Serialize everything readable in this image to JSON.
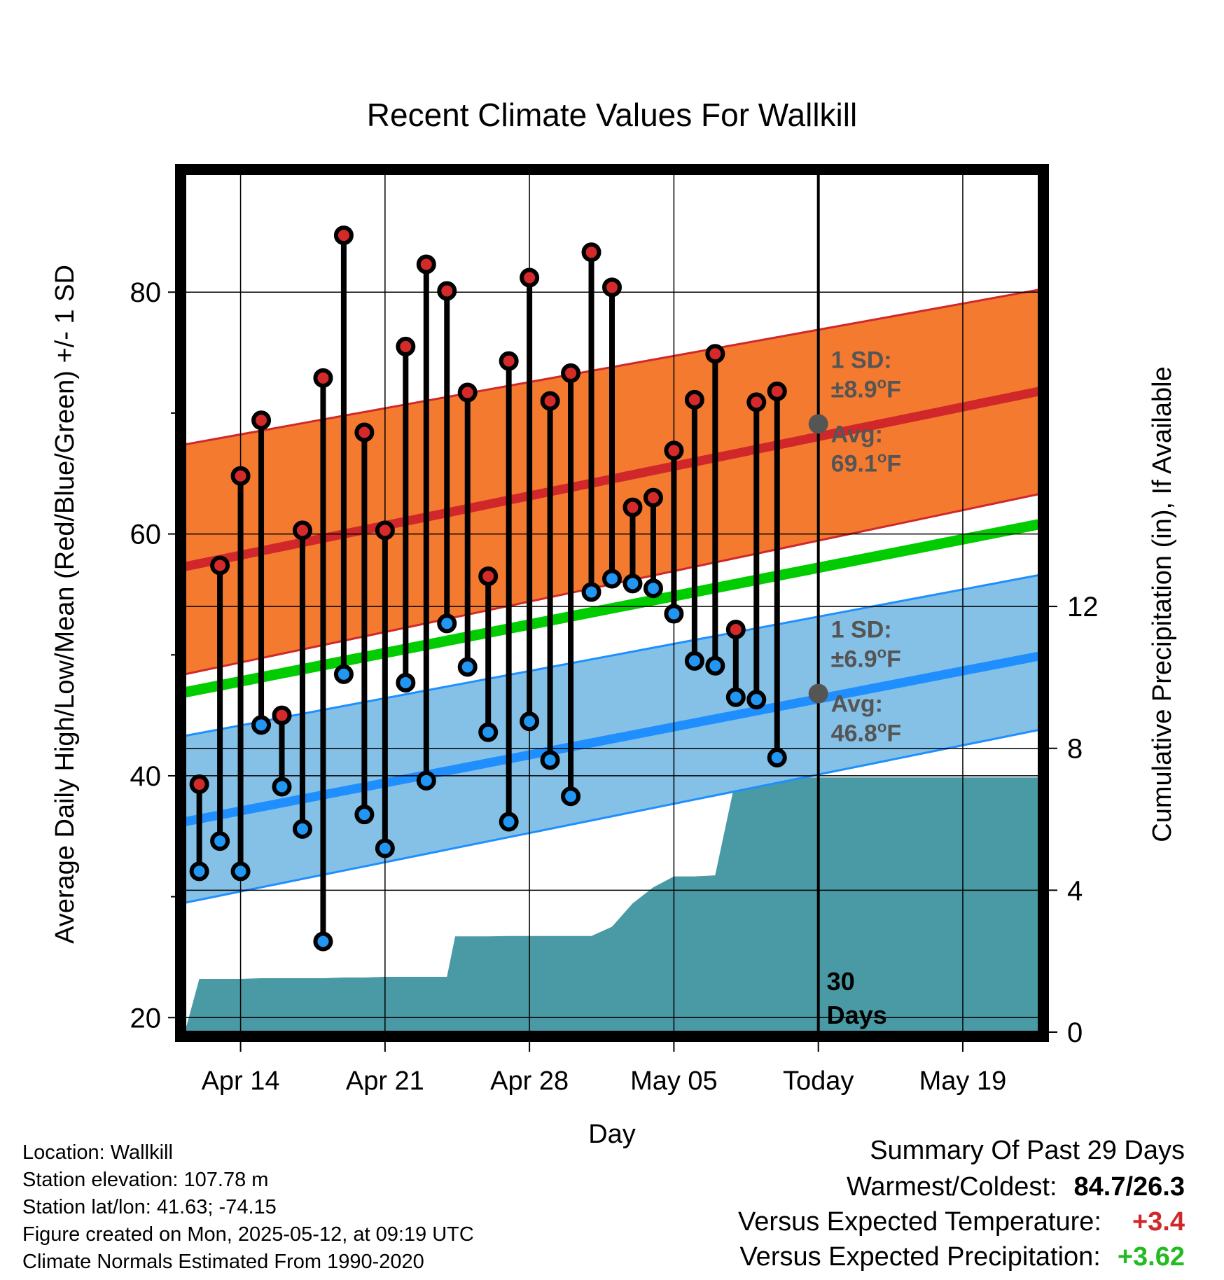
{
  "chart_data": {
    "type": "line",
    "title": "Recent Climate Values For Wallkill",
    "xlabel": "Day",
    "ylabel": "Average Daily High/Low/Mean (Red/Blue/Green) +/- 1 SD",
    "y2label": "Cumulative Precipitation (in), If Available",
    "ylim": [
      18.8,
      89.8
    ],
    "y2lim": [
      0,
      24.2
    ],
    "xlim": [
      -0.7,
      40.7
    ],
    "yticks": [
      20,
      40,
      60,
      80
    ],
    "yticks_minor": [
      30,
      50,
      70
    ],
    "y2ticks": [
      0,
      4,
      8,
      12
    ],
    "x_ticks": [
      {
        "label": "Apr 14",
        "x": 2
      },
      {
        "label": "Apr 21",
        "x": 9
      },
      {
        "label": "Apr 28",
        "x": 16
      },
      {
        "label": "May 05",
        "x": 23
      },
      {
        "label": "Today",
        "x": 30
      },
      {
        "label": "May 19",
        "x": 37
      }
    ],
    "today_x": 30,
    "today_label_line1": "30",
    "today_label_line2": "Days",
    "grid": true,
    "daily": {
      "x": [
        0,
        1,
        2,
        3,
        4,
        5,
        6,
        7,
        8,
        9,
        10,
        11,
        12,
        13,
        14,
        15,
        16,
        17,
        18,
        19,
        20,
        21,
        22,
        23,
        24,
        25,
        26,
        27,
        28,
        29
      ],
      "high": [
        39.3,
        57.4,
        64.8,
        69.4,
        45.0,
        60.3,
        72.9,
        84.7,
        68.4,
        60.3,
        75.5,
        82.3,
        80.1,
        71.7,
        56.5,
        74.3,
        81.2,
        71.0,
        73.3,
        83.3,
        80.4,
        62.2,
        63.0,
        66.9,
        71.1,
        74.9,
        52.1,
        70.9,
        71.8,
        null
      ],
      "low": [
        32.1,
        34.6,
        32.1,
        44.2,
        39.1,
        35.6,
        26.3,
        48.4,
        36.8,
        34.0,
        47.7,
        39.6,
        52.6,
        49.0,
        43.6,
        36.2,
        44.5,
        41.3,
        38.3,
        55.2,
        56.3,
        55.9,
        55.5,
        53.4,
        49.5,
        49.1,
        46.5,
        46.3,
        41.5,
        null
      ]
    },
    "normals": {
      "x_start": -0.7,
      "x_end": 40.7,
      "high_avg": [
        57.3,
        71.8
      ],
      "high_lower": [
        48.4,
        63.3
      ],
      "high_upper": [
        67.4,
        80.2
      ],
      "low_avg": [
        36.2,
        49.9
      ],
      "low_lower": [
        29.5,
        43.8
      ],
      "low_upper": [
        43.3,
        56.6
      ],
      "mean_avg": [
        46.9,
        60.8
      ]
    },
    "precip": {
      "x": [
        -0.7,
        0,
        1,
        2,
        3,
        4,
        5,
        6,
        7,
        8,
        9,
        10,
        11,
        12,
        12.4,
        13,
        14,
        15,
        16,
        17,
        18,
        19,
        20,
        21,
        22,
        23,
        24,
        25,
        26,
        27,
        28,
        29,
        30,
        40.7
      ],
      "y": [
        0,
        1.5,
        1.5,
        1.5,
        1.52,
        1.52,
        1.52,
        1.52,
        1.54,
        1.54,
        1.56,
        1.56,
        1.56,
        1.56,
        2.7,
        2.7,
        2.7,
        2.71,
        2.71,
        2.71,
        2.71,
        2.71,
        2.97,
        3.63,
        4.08,
        4.39,
        4.39,
        4.42,
        7.15,
        7.18,
        7.18,
        7.18,
        7.18,
        7.18
      ]
    },
    "annotations": {
      "high_sd_label": "1 SD:",
      "high_sd_value": "±8.9°F",
      "high_avg_label": "Avg:",
      "high_avg_value": "69.1°F",
      "high_avg_today": 69.1,
      "low_sd_label": "1 SD:",
      "low_sd_value": "±6.9°F",
      "low_avg_label": "Avg:",
      "low_avg_value": "46.8°F",
      "low_avg_today": 46.8
    },
    "colors": {
      "high_band": "#f47a30",
      "high_line": "#d0282a",
      "low_band": "#85c1e6",
      "low_line": "#1f8fff",
      "mean_line": "#00cc00",
      "precip": "#4a9aa5",
      "high_dot": "#d42a2a",
      "low_dot": "#2196f3",
      "annotation": "#555555"
    }
  },
  "footer": {
    "location": "Location: Wallkill",
    "elevation": "Station elevation: 107.78 m",
    "latlon": "Station lat/lon: 41.63; -74.15",
    "created": "Figure created on Mon, 2025-05-12, at 09:19 UTC",
    "normals_source": "Climate Normals Estimated From 1990-2020"
  },
  "summary": {
    "title": "Summary Of Past 29 Days",
    "warmest_coldest_label": "Warmest/Coldest:",
    "warmest_coldest_value": "84.7/26.3",
    "temp_label": "Versus Expected Temperature:",
    "temp_value": "+3.4",
    "temp_color": "#d0282a",
    "precip_label": "Versus Expected Precipitation:",
    "precip_value": "+3.62",
    "precip_color": "#22bb22"
  }
}
